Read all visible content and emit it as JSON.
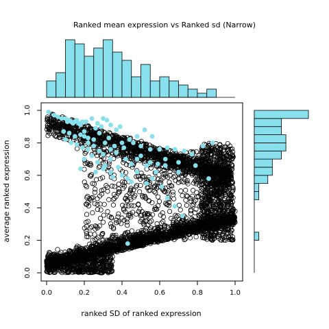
{
  "chart_data": {
    "type": "scatter",
    "title": "Ranked mean expression vs Ranked sd (Narrow)",
    "xlabel": "ranked SD of ranked expression",
    "ylabel": "average ranked expression",
    "xlim": [
      0,
      1
    ],
    "ylim": [
      0,
      1
    ],
    "x_ticks": [
      "0.0",
      "0.2",
      "0.4",
      "0.6",
      "0.8",
      "1.0"
    ],
    "y_ticks": [
      "0.0",
      "0.2",
      "0.4",
      "0.6",
      "0.8",
      "1.0"
    ],
    "background_series": {
      "marker": "open-circle",
      "color": "#000000",
      "description_points": "dense cloud of genes (open circles)"
    },
    "highlight_series": {
      "marker": "filled-circle",
      "color": "#87e0ec",
      "points": [
        [
          0.01,
          0.99
        ],
        [
          0.04,
          0.97
        ],
        [
          0.06,
          0.96
        ],
        [
          0.08,
          0.95
        ],
        [
          0.1,
          0.95
        ],
        [
          0.11,
          0.93
        ],
        [
          0.12,
          0.94
        ],
        [
          0.13,
          0.93
        ],
        [
          0.14,
          0.92
        ],
        [
          0.15,
          0.93
        ],
        [
          0.16,
          0.94
        ],
        [
          0.17,
          0.92
        ],
        [
          0.18,
          0.91
        ],
        [
          0.19,
          0.93
        ],
        [
          0.21,
          0.93
        ],
        [
          0.24,
          0.95
        ],
        [
          0.27,
          0.92
        ],
        [
          0.29,
          0.9
        ],
        [
          0.3,
          0.95
        ],
        [
          0.32,
          0.94
        ],
        [
          0.34,
          0.91
        ],
        [
          0.37,
          0.88
        ],
        [
          0.39,
          0.9
        ],
        [
          0.09,
          0.87
        ],
        [
          0.12,
          0.86
        ],
        [
          0.15,
          0.84
        ],
        [
          0.18,
          0.85
        ],
        [
          0.2,
          0.84
        ],
        [
          0.22,
          0.83
        ],
        [
          0.25,
          0.82
        ],
        [
          0.28,
          0.86
        ],
        [
          0.31,
          0.8
        ],
        [
          0.33,
          0.83
        ],
        [
          0.36,
          0.78
        ],
        [
          0.4,
          0.8
        ],
        [
          0.44,
          0.82
        ],
        [
          0.48,
          0.84
        ],
        [
          0.52,
          0.88
        ],
        [
          0.56,
          0.84
        ],
        [
          0.1,
          0.82
        ],
        [
          0.13,
          0.8
        ],
        [
          0.16,
          0.79
        ],
        [
          0.19,
          0.77
        ],
        [
          0.22,
          0.76
        ],
        [
          0.25,
          0.78
        ],
        [
          0.28,
          0.75
        ],
        [
          0.3,
          0.73
        ],
        [
          0.34,
          0.76
        ],
        [
          0.37,
          0.74
        ],
        [
          0.41,
          0.77
        ],
        [
          0.46,
          0.8
        ],
        [
          0.5,
          0.78
        ],
        [
          0.55,
          0.76
        ],
        [
          0.6,
          0.76
        ],
        [
          0.64,
          0.77
        ],
        [
          0.68,
          0.76
        ],
        [
          0.73,
          0.75
        ],
        [
          0.77,
          0.73
        ],
        [
          0.83,
          0.78
        ],
        [
          0.2,
          0.7
        ],
        [
          0.24,
          0.72
        ],
        [
          0.27,
          0.68
        ],
        [
          0.31,
          0.66
        ],
        [
          0.34,
          0.7
        ],
        [
          0.38,
          0.65
        ],
        [
          0.42,
          0.7
        ],
        [
          0.45,
          0.67
        ],
        [
          0.5,
          0.72
        ],
        [
          0.55,
          0.68
        ],
        [
          0.59,
          0.67
        ],
        [
          0.63,
          0.7
        ],
        [
          0.7,
          0.68
        ],
        [
          0.79,
          0.66
        ],
        [
          0.34,
          0.62
        ],
        [
          0.4,
          0.6
        ],
        [
          0.43,
          0.58
        ],
        [
          0.48,
          0.62
        ],
        [
          0.53,
          0.66
        ],
        [
          0.58,
          0.62
        ],
        [
          0.63,
          0.66
        ],
        [
          0.7,
          0.62
        ],
        [
          0.18,
          0.64
        ],
        [
          0.26,
          0.62
        ],
        [
          0.3,
          0.64
        ],
        [
          0.45,
          0.56
        ],
        [
          0.53,
          0.55
        ],
        [
          0.61,
          0.53
        ],
        [
          0.64,
          0.46
        ],
        [
          0.68,
          0.41
        ],
        [
          0.72,
          0.35
        ],
        [
          0.86,
          0.58
        ],
        [
          0.88,
          0.8
        ],
        [
          0.43,
          0.18
        ],
        [
          0.35,
          0.59
        ],
        [
          0.56,
          0.58
        ],
        [
          0.48,
          0.7
        ],
        [
          0.2,
          0.87
        ],
        [
          0.26,
          0.89
        ],
        [
          0.22,
          0.8
        ]
      ]
    },
    "top_histogram": {
      "bin_edges": [
        0.0,
        0.05,
        0.1,
        0.15,
        0.2,
        0.25,
        0.3,
        0.35,
        0.4,
        0.45,
        0.5,
        0.55,
        0.6,
        0.65,
        0.7,
        0.75,
        0.8,
        0.85,
        0.9
      ],
      "counts": [
        4,
        6,
        14,
        13,
        10,
        12,
        14,
        11,
        9,
        5,
        8,
        4,
        5,
        4,
        3,
        2,
        1,
        2
      ]
    },
    "right_histogram": {
      "bin_edges": [
        0.0,
        0.05,
        0.1,
        0.15,
        0.2,
        0.25,
        0.3,
        0.35,
        0.4,
        0.45,
        0.5,
        0.55,
        0.6,
        0.65,
        0.7,
        0.75,
        0.8,
        0.85,
        0.9,
        0.95,
        1.0
      ],
      "counts": [
        0,
        0,
        0,
        0,
        1,
        0,
        0,
        0,
        0,
        1,
        1,
        3,
        4,
        4,
        6,
        7,
        7,
        6,
        6,
        12,
        6
      ]
    },
    "grid": false,
    "legend": "none"
  }
}
